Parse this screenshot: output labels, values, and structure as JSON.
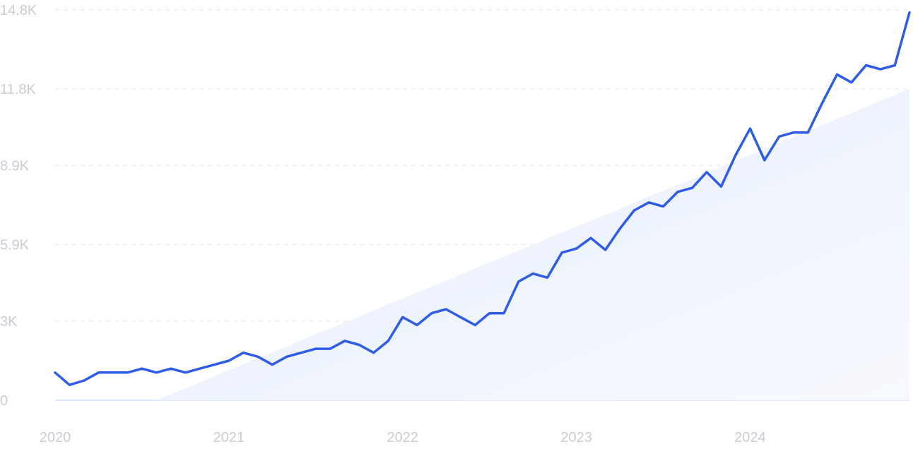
{
  "chart_data": {
    "type": "line",
    "title": "",
    "xlabel": "",
    "ylabel": "",
    "ylim": [
      0,
      14800
    ],
    "grid": true,
    "y_ticks": [
      {
        "value": 0,
        "label": "0"
      },
      {
        "value": 3000,
        "label": "3K"
      },
      {
        "value": 5900,
        "label": "5.9K"
      },
      {
        "value": 8900,
        "label": "8.9K"
      },
      {
        "value": 11800,
        "label": "11.8K"
      },
      {
        "value": 14800,
        "label": "14.8K"
      }
    ],
    "x_ticks": [
      {
        "value": 2020.0,
        "label": "2020"
      },
      {
        "value": 2021.0,
        "label": "2021"
      },
      {
        "value": 2022.0,
        "label": "2022"
      },
      {
        "value": 2023.0,
        "label": "2023"
      },
      {
        "value": 2024.0,
        "label": "2024"
      }
    ],
    "xlim": [
      2020.0,
      2024.917
    ],
    "series": [
      {
        "color": "#2e5ce6",
        "x": [
          2020.0,
          2020.083,
          2020.167,
          2020.25,
          2020.333,
          2020.417,
          2020.5,
          2020.583,
          2020.667,
          2020.75,
          2020.833,
          2020.917,
          2021.0,
          2021.083,
          2021.167,
          2021.25,
          2021.333,
          2021.417,
          2021.5,
          2021.583,
          2021.667,
          2021.75,
          2021.833,
          2021.917,
          2022.0,
          2022.083,
          2022.167,
          2022.25,
          2022.333,
          2022.417,
          2022.5,
          2022.583,
          2022.667,
          2022.75,
          2022.833,
          2022.917,
          2023.0,
          2023.083,
          2023.167,
          2023.25,
          2023.333,
          2023.417,
          2023.5,
          2023.583,
          2023.667,
          2023.75,
          2023.833,
          2023.917,
          2024.0,
          2024.083,
          2024.167,
          2024.25,
          2024.333,
          2024.417,
          2024.5,
          2024.583,
          2024.667,
          2024.75,
          2024.833,
          2024.917
        ],
        "y": [
          1050,
          580,
          750,
          1050,
          1050,
          1050,
          1200,
          1050,
          1200,
          1050,
          1200,
          1350,
          1500,
          1800,
          1650,
          1350,
          1650,
          1800,
          1950,
          1950,
          2250,
          2100,
          1800,
          2250,
          3150,
          2850,
          3300,
          3450,
          3150,
          2850,
          3300,
          3300,
          4500,
          4800,
          4650,
          5600,
          5750,
          6150,
          5700,
          6500,
          7200,
          7500,
          7350,
          7900,
          8050,
          8650,
          8100,
          9300,
          10300,
          9100,
          10000,
          10150,
          10150,
          11300,
          12350,
          12050,
          12700,
          12550,
          12700,
          14700
        ]
      }
    ],
    "trend": {
      "x": [
        2020.583,
        2024.917
      ],
      "y": [
        0,
        11800
      ],
      "color": "#dde8fb"
    }
  }
}
